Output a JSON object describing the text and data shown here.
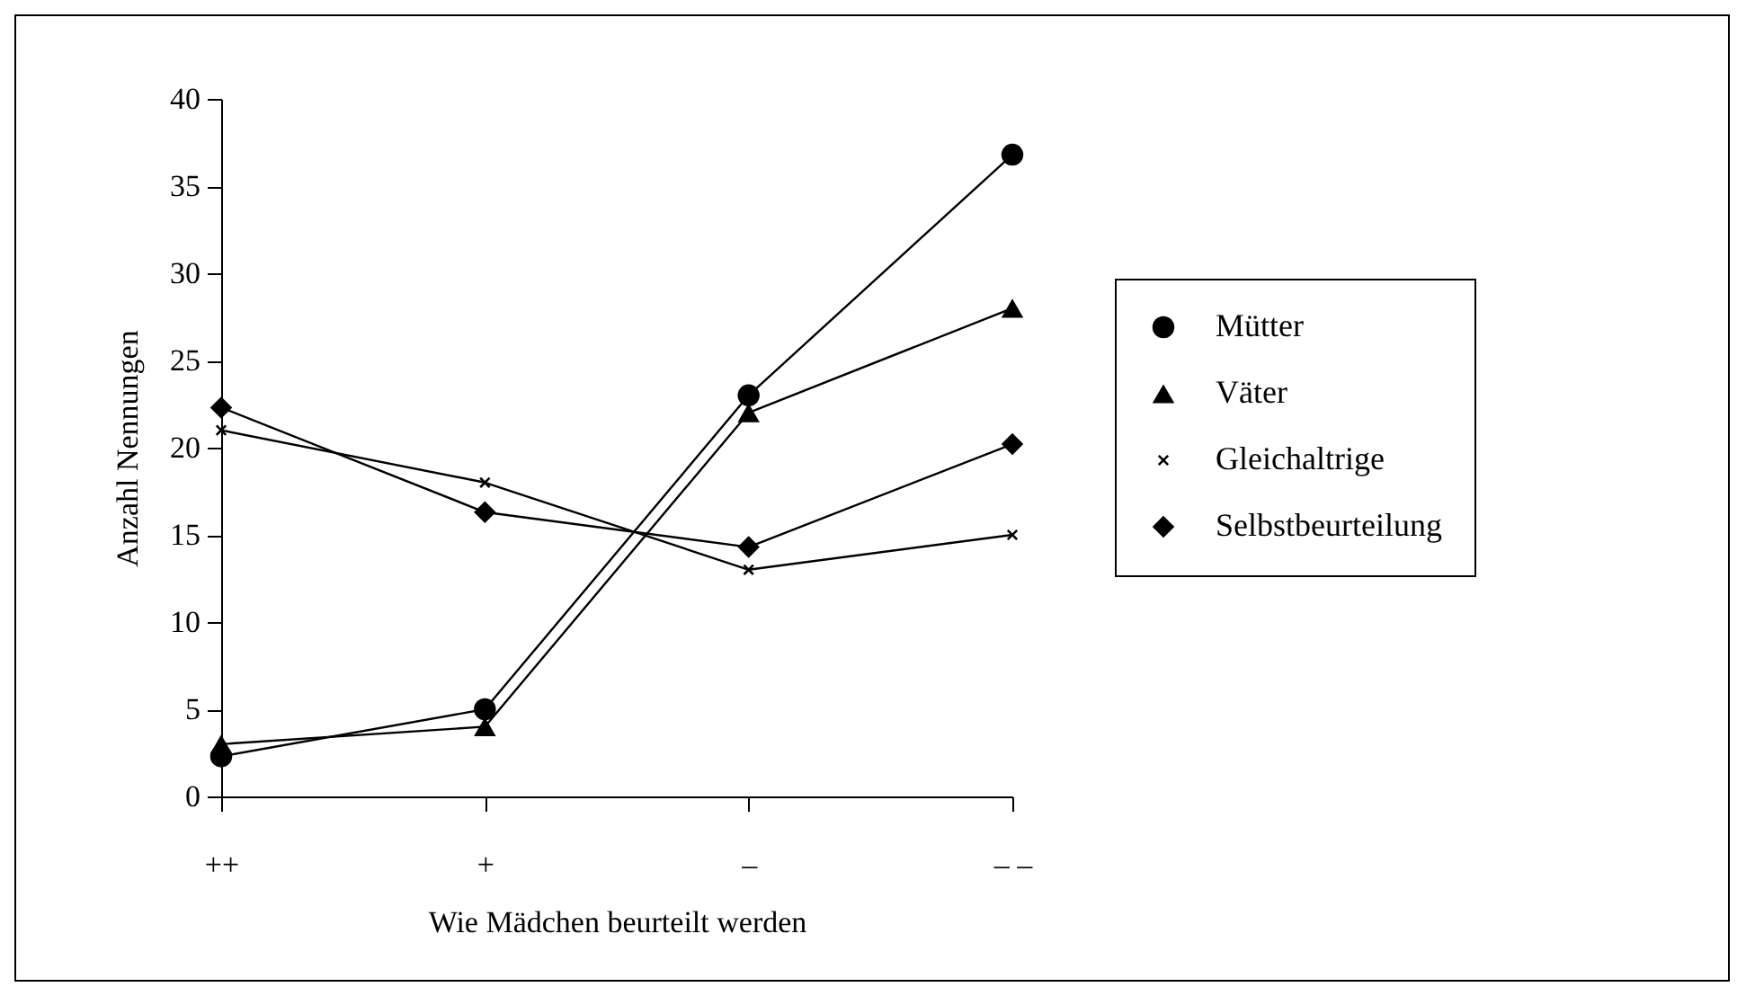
{
  "chart_data": {
    "type": "line",
    "xlabel": "Wie Mädchen beurteilt werden",
    "ylabel": "Anzahl Nennungen",
    "categories": [
      "++",
      "+",
      "–",
      "– –"
    ],
    "ylim": [
      0,
      40
    ],
    "yticks": [
      0,
      5,
      10,
      15,
      20,
      25,
      30,
      35,
      40
    ],
    "legend": "right",
    "series": [
      {
        "name": "Mütter",
        "color": "#000000",
        "marker": "circle",
        "values": [
          2.3,
          5,
          23,
          36.8
        ]
      },
      {
        "name": "Väter",
        "color": "#000000",
        "marker": "triangle",
        "values": [
          3,
          4,
          22,
          28
        ]
      },
      {
        "name": "Gleichaltrige",
        "color": "#000000",
        "marker": "cross",
        "values": [
          21,
          18,
          13,
          15
        ]
      },
      {
        "name": "Selbstbeurteilung",
        "color": "#000000",
        "marker": "diamond",
        "values": [
          22.3,
          16.3,
          14.3,
          20.2
        ]
      }
    ]
  }
}
